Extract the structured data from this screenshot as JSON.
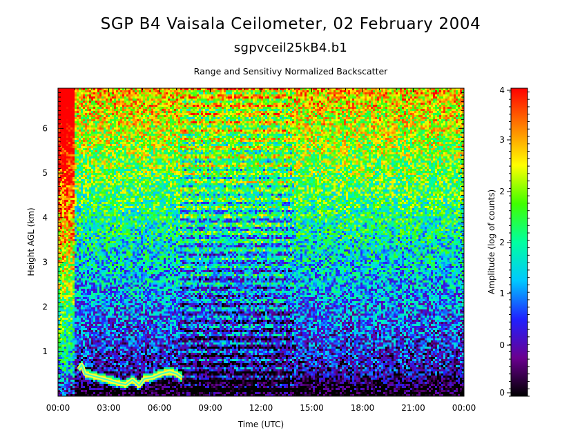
{
  "chart_data": {
    "type": "heatmap",
    "title": "SGP B4 Vaisala Ceilometer, 02 February 2004",
    "subtitle": "sgpvceil25kB4.b1",
    "plot_title": "Range and Sensitivy Normalized Backscatter",
    "xlabel": "Time (UTC)",
    "ylabel": "Height AGL (km)",
    "x_tick_labels": [
      "00:00",
      "03:00",
      "06:00",
      "09:00",
      "12:00",
      "15:00",
      "18:00",
      "21:00",
      "00:00"
    ],
    "x_ticks_hours": [
      0,
      3,
      6,
      9,
      12,
      15,
      18,
      21,
      24
    ],
    "xlim_hours": [
      0,
      24
    ],
    "y_tick_labels": [
      "1",
      "2",
      "3",
      "4",
      "5",
      "6"
    ],
    "y_ticks_km": [
      1,
      2,
      3,
      4,
      5,
      6
    ],
    "ylim_km": [
      0,
      6.9
    ],
    "colorbar": {
      "label": "Amplitude (log of counts)",
      "tick_labels": [
        "0",
        "0",
        "1",
        "2",
        "2",
        "3",
        "4"
      ],
      "range": [
        -0.1,
        4.05
      ],
      "colors": [
        "#000000",
        "#6a0090",
        "#2020ff",
        "#00c8ff",
        "#00ffa0",
        "#40ff00",
        "#ffff00",
        "#ff8000",
        "#ff0000"
      ]
    },
    "features": {
      "low_cloud_layer": {
        "start_hour": 1.2,
        "end_hour": 7.3,
        "height_km": [
          [
            1.2,
            0.6
          ],
          [
            1.4,
            0.7
          ],
          [
            1.6,
            0.5
          ],
          [
            2.0,
            0.46
          ],
          [
            2.5,
            0.41
          ],
          [
            3.0,
            0.36
          ],
          [
            3.5,
            0.3
          ],
          [
            4.0,
            0.26
          ],
          [
            4.4,
            0.37
          ],
          [
            4.8,
            0.24
          ],
          [
            5.1,
            0.39
          ],
          [
            5.6,
            0.42
          ],
          [
            6.1,
            0.5
          ],
          [
            6.6,
            0.55
          ],
          [
            7.0,
            0.5
          ],
          [
            7.3,
            0.42
          ]
        ]
      },
      "high_noise_period_hours": [
        0.0,
        1.0
      ],
      "striped_period_hours": [
        7.2,
        14.0
      ]
    }
  }
}
